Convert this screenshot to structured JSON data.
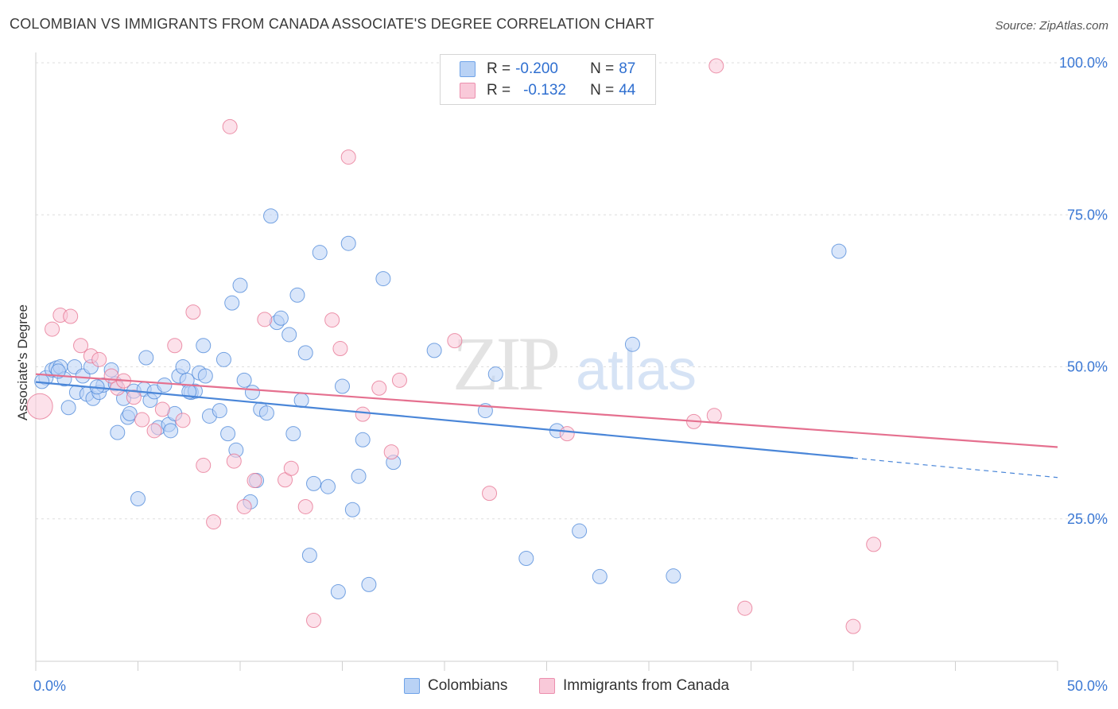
{
  "header": {
    "title": "COLOMBIAN VS IMMIGRANTS FROM CANADA ASSOCIATE'S DEGREE CORRELATION CHART",
    "source": "Source: ZipAtlas.com"
  },
  "watermark": {
    "zip": "ZIP",
    "atlas": "atlas"
  },
  "legend": {
    "rows": [
      {
        "r_label": "R =",
        "r_value": "-0.200",
        "n_label": "N =",
        "n_value": "87",
        "color": "#6fa3e8",
        "fill": "#b9d2f5"
      },
      {
        "r_label": "R =",
        "r_value": "-0.132",
        "n_label": "N =",
        "n_value": "44",
        "color": "#ec8fae",
        "fill": "#f9c9d9"
      }
    ]
  },
  "bottom_legend": {
    "items": [
      {
        "label": "Colombians",
        "color": "#6fa3e8",
        "fill": "#b9d2f5"
      },
      {
        "label": "Immigrants from Canada",
        "color": "#ec8fae",
        "fill": "#f9c9d9"
      }
    ]
  },
  "chart_data": {
    "type": "scatter",
    "ylabel": "Associate's Degree",
    "xlim": [
      0,
      50
    ],
    "ylim": [
      0,
      105
    ],
    "x_tick_labels": [
      {
        "value": 0,
        "label": "0.0%"
      },
      {
        "value": 50,
        "label": "50.0%"
      }
    ],
    "y_tick_labels": [
      {
        "value": 25,
        "label": "25.0%"
      },
      {
        "value": 50,
        "label": "50.0%"
      },
      {
        "value": 75,
        "label": "75.0%"
      },
      {
        "value": 100,
        "label": "100.0%"
      }
    ],
    "x_minor_ticks": [
      0,
      5,
      10,
      15,
      20,
      25,
      30,
      35,
      40,
      45,
      50
    ],
    "grid": true,
    "series": [
      {
        "name": "Colombians",
        "color": "#4a86d8",
        "fill": "#b9d2f5",
        "trend": {
          "x": [
            0,
            40
          ],
          "y": [
            47.5,
            35.0
          ]
        },
        "trend_dashed": {
          "x": [
            40,
            50
          ],
          "y": [
            35.0,
            31.8
          ]
        },
        "points": [
          [
            0.5,
            48.2
          ],
          [
            0.8,
            49.5
          ],
          [
            1.0,
            49.8
          ],
          [
            1.2,
            50.0
          ],
          [
            1.4,
            48.0
          ],
          [
            1.6,
            43.3
          ],
          [
            1.9,
            50.0
          ],
          [
            2.0,
            45.8
          ],
          [
            2.3,
            48.5
          ],
          [
            2.5,
            45.5
          ],
          [
            2.7,
            50.0
          ],
          [
            2.8,
            44.8
          ],
          [
            3.1,
            45.8
          ],
          [
            3.3,
            47.0
          ],
          [
            3.7,
            49.5
          ],
          [
            3.9,
            47.2
          ],
          [
            4.0,
            39.2
          ],
          [
            4.3,
            44.8
          ],
          [
            4.5,
            41.7
          ],
          [
            4.6,
            42.3
          ],
          [
            4.8,
            46.0
          ],
          [
            5.0,
            28.3
          ],
          [
            5.3,
            46.3
          ],
          [
            5.4,
            51.5
          ],
          [
            5.6,
            44.5
          ],
          [
            5.8,
            45.9
          ],
          [
            6.0,
            40.0
          ],
          [
            6.3,
            47.0
          ],
          [
            6.5,
            40.5
          ],
          [
            6.6,
            39.5
          ],
          [
            6.8,
            42.3
          ],
          [
            7.0,
            48.5
          ],
          [
            7.2,
            50.0
          ],
          [
            7.4,
            47.8
          ],
          [
            7.6,
            45.8
          ],
          [
            7.8,
            46.0
          ],
          [
            8.0,
            49.0
          ],
          [
            8.2,
            53.5
          ],
          [
            8.3,
            48.5
          ],
          [
            8.5,
            41.9
          ],
          [
            9.0,
            42.8
          ],
          [
            9.2,
            51.2
          ],
          [
            9.4,
            39.0
          ],
          [
            9.6,
            60.5
          ],
          [
            9.8,
            36.3
          ],
          [
            10.0,
            63.4
          ],
          [
            10.2,
            47.8
          ],
          [
            10.5,
            27.8
          ],
          [
            10.6,
            45.8
          ],
          [
            10.8,
            31.3
          ],
          [
            11.0,
            43.0
          ],
          [
            11.3,
            42.4
          ],
          [
            11.5,
            74.8
          ],
          [
            11.8,
            57.3
          ],
          [
            12.0,
            58.0
          ],
          [
            12.4,
            55.3
          ],
          [
            12.6,
            39.0
          ],
          [
            12.8,
            61.8
          ],
          [
            13.0,
            44.5
          ],
          [
            13.2,
            52.3
          ],
          [
            13.4,
            19.0
          ],
          [
            13.6,
            30.8
          ],
          [
            13.9,
            68.8
          ],
          [
            14.3,
            30.3
          ],
          [
            14.8,
            13.0
          ],
          [
            15.0,
            46.8
          ],
          [
            15.3,
            70.3
          ],
          [
            15.5,
            26.5
          ],
          [
            15.8,
            32.0
          ],
          [
            16.0,
            38.0
          ],
          [
            16.3,
            14.2
          ],
          [
            17.0,
            64.5
          ],
          [
            17.5,
            34.3
          ],
          [
            19.5,
            52.7
          ],
          [
            22.0,
            42.8
          ],
          [
            22.5,
            48.8
          ],
          [
            24.0,
            18.5
          ],
          [
            25.5,
            39.5
          ],
          [
            26.6,
            23.0
          ],
          [
            27.6,
            15.5
          ],
          [
            29.2,
            53.7
          ],
          [
            31.2,
            15.6
          ],
          [
            39.3,
            69.0
          ],
          [
            0.3,
            47.6
          ],
          [
            1.1,
            49.3
          ],
          [
            3.0,
            46.7
          ],
          [
            7.5,
            45.9
          ]
        ]
      },
      {
        "name": "Immigrants from Canada",
        "color": "#e5708f",
        "fill": "#f9c9d9",
        "trend": {
          "x": [
            0,
            50
          ],
          "y": [
            48.8,
            36.8
          ]
        },
        "points": [
          [
            0.2,
            43.5
          ],
          [
            0.8,
            56.2
          ],
          [
            1.2,
            58.5
          ],
          [
            1.7,
            58.3
          ],
          [
            2.2,
            53.5
          ],
          [
            2.7,
            51.8
          ],
          [
            3.1,
            51.2
          ],
          [
            3.7,
            48.5
          ],
          [
            4.0,
            46.5
          ],
          [
            4.3,
            47.7
          ],
          [
            4.8,
            45.0
          ],
          [
            5.2,
            41.3
          ],
          [
            5.8,
            39.5
          ],
          [
            6.2,
            43.0
          ],
          [
            6.8,
            53.5
          ],
          [
            7.2,
            41.2
          ],
          [
            7.7,
            59.0
          ],
          [
            8.2,
            33.8
          ],
          [
            8.7,
            24.5
          ],
          [
            9.5,
            89.5
          ],
          [
            9.7,
            34.5
          ],
          [
            10.2,
            27.0
          ],
          [
            10.7,
            31.3
          ],
          [
            11.2,
            57.8
          ],
          [
            12.2,
            31.4
          ],
          [
            12.5,
            33.3
          ],
          [
            13.2,
            27.0
          ],
          [
            13.6,
            8.3
          ],
          [
            14.5,
            57.7
          ],
          [
            14.9,
            53.0
          ],
          [
            15.3,
            84.5
          ],
          [
            16.0,
            42.2
          ],
          [
            16.8,
            46.5
          ],
          [
            17.4,
            36.0
          ],
          [
            17.8,
            47.8
          ],
          [
            20.5,
            54.3
          ],
          [
            22.2,
            29.2
          ],
          [
            26.0,
            39.0
          ],
          [
            32.2,
            41.0
          ],
          [
            33.2,
            42.0
          ],
          [
            33.3,
            99.5
          ],
          [
            34.7,
            10.3
          ],
          [
            40.0,
            7.3
          ],
          [
            41.0,
            20.8
          ]
        ]
      }
    ]
  }
}
